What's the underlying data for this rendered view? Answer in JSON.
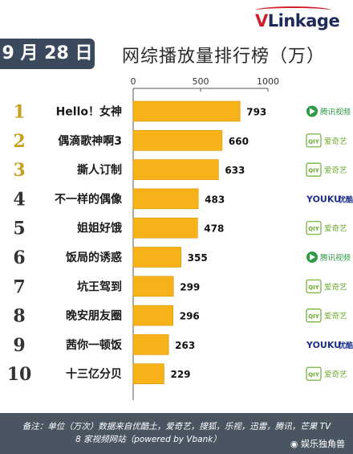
{
  "brand": {
    "logo_text": "VLinkage",
    "logo_v": "V",
    "logo_rest": "Linkage"
  },
  "header": {
    "date": "9 月 28 日",
    "title": "网综播放量排行榜（万）"
  },
  "colors": {
    "bar": "#f7b21a",
    "rank": "#c8a020",
    "rank_dark": "#333333",
    "badge": "#3a4a5c"
  },
  "chart_data": {
    "type": "bar",
    "orientation": "horizontal",
    "title": "网综播放量排行榜（万）",
    "xlim": [
      0,
      1000
    ],
    "xticks": [
      0,
      500,
      1000
    ],
    "ranks": [
      1,
      2,
      3,
      4,
      5,
      6,
      7,
      8,
      9,
      10
    ],
    "categories": [
      "Hello！女神",
      "偶滴歌神啊3",
      "撕人订制",
      "不一样的偶像",
      "姐姐好饿",
      "饭局的诱惑",
      "坑王驾到",
      "晚安朋友圈",
      "茜你一顿饭",
      "十三亿分贝"
    ],
    "values": [
      793,
      660,
      633,
      483,
      478,
      355,
      299,
      296,
      263,
      229
    ],
    "platforms": [
      "腾讯视频",
      "爱奇艺",
      "爱奇艺",
      "优酷",
      "爱奇艺",
      "腾讯视频",
      "爱奇艺",
      "爱奇艺",
      "优酷",
      "爱奇艺"
    ],
    "grid": false,
    "legend": "none"
  },
  "platform_logos": {
    "腾讯视频": {
      "icon": "tencent-video-icon",
      "text": "腾讯视频",
      "color": "#2e9a46"
    },
    "爱奇艺": {
      "icon": "iqiyi-icon",
      "text": "爱奇艺",
      "mark": "QIY",
      "color": "#6cab2e"
    },
    "优酷": {
      "icon": "youku-icon",
      "text": "优酷",
      "mark": "YOUKU",
      "color": "#1d2f8c"
    }
  },
  "footer": {
    "line1": "备注：单位（万次）数据来自优酷土，爱奇艺，搜狐，乐视，迅雷，腾讯，芒果 TV",
    "line2": "8 家视频网站（powered by Vbank）",
    "watermark": "娱乐独角兽"
  }
}
